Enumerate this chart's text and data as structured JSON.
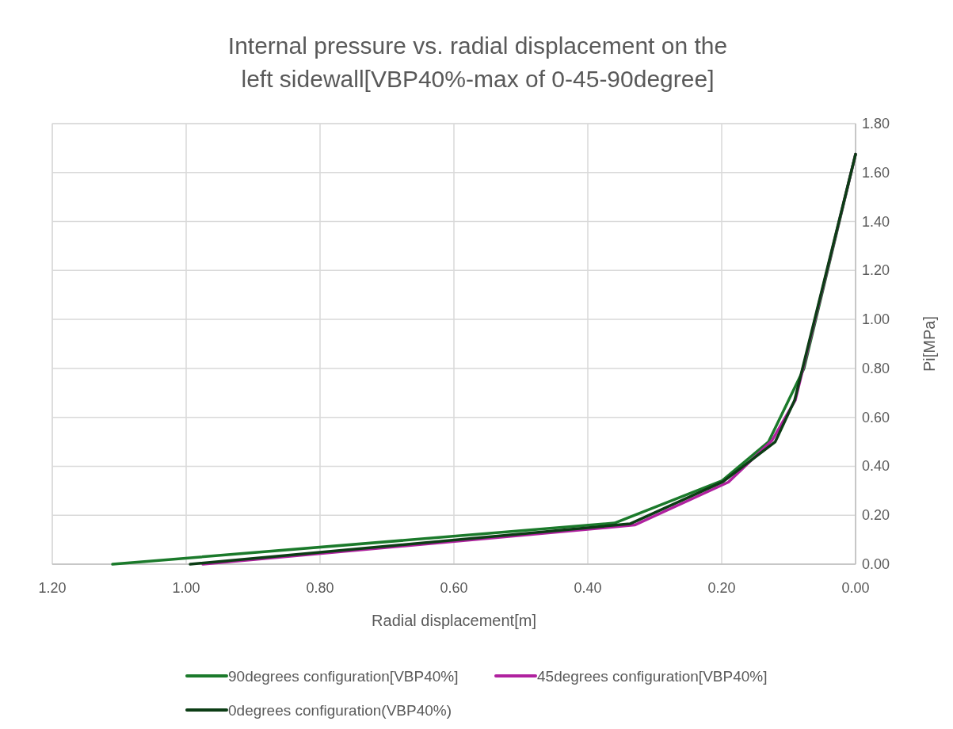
{
  "chart_data": {
    "type": "line",
    "title": "Internal pressure vs. radial displacement on the left sidewall[VBP40%-max of 0-45-90degree]",
    "xlabel": "Radial displacement[m]",
    "ylabel": "Pi[MPa]",
    "xlim": [
      1.2,
      0
    ],
    "xticks": [
      {
        "value": 1.2,
        "label": "1.20"
      },
      {
        "value": 1,
        "label": "1.00"
      },
      {
        "value": 0.8,
        "label": "0.80"
      },
      {
        "value": 0.6,
        "label": "0.60"
      },
      {
        "value": 0.4,
        "label": "0.40"
      },
      {
        "value": 0.2,
        "label": "0.20"
      },
      {
        "value": 0,
        "label": "0.00"
      }
    ],
    "ylim": [
      0,
      1.8
    ],
    "yticks": [
      {
        "value": 0,
        "label": "0.00"
      },
      {
        "value": 0.2,
        "label": "0.20"
      },
      {
        "value": 0.4,
        "label": "0.40"
      },
      {
        "value": 0.6,
        "label": "0.60"
      },
      {
        "value": 0.8,
        "label": "0.80"
      },
      {
        "value": 1,
        "label": "1.00"
      },
      {
        "value": 1.2,
        "label": "1.20"
      },
      {
        "value": 1.4,
        "label": "1.40"
      },
      {
        "value": 1.6,
        "label": "1.60"
      },
      {
        "value": 1.8,
        "label": "1.80"
      }
    ],
    "grid": true,
    "legend": "bottom",
    "marker": "none",
    "line_style": "solid",
    "series": [
      {
        "name": "90degrees configuration[VBP40%]",
        "color": "#1b7a2b",
        "x": [
          1.11,
          0.36,
          0.2,
          0.13,
          0.1,
          0.077,
          0
        ],
        "values": [
          0,
          0.168,
          0.34,
          0.5,
          0.67,
          0.8,
          1.675
        ]
      },
      {
        "name": "45degrees configuration[VBP40%]",
        "color": "#b0219f",
        "x": [
          0.975,
          0.33,
          0.19,
          0.125,
          0.09,
          0
        ],
        "values": [
          0,
          0.16,
          0.335,
          0.505,
          0.67,
          1.675
        ]
      },
      {
        "name": "0degrees configuration(VBP40%)",
        "color": "#0c3d15",
        "x": [
          0.994,
          0.337,
          0.198,
          0.12,
          0.091,
          0
        ],
        "values": [
          0,
          0.165,
          0.337,
          0.5,
          0.67,
          1.675
        ]
      }
    ]
  }
}
